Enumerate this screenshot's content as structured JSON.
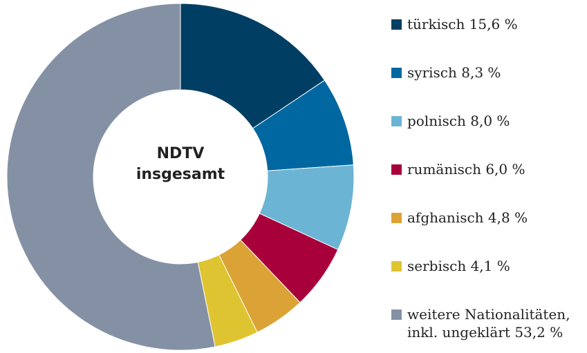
{
  "chart_data": {
    "type": "pie",
    "center_label": "NDTV insgesamt",
    "categories": [
      "türkisch",
      "syrisch",
      "polnisch",
      "rumänisch",
      "afghanisch",
      "serbisch",
      "weitere Nationalitäten, inkl. ungeklärt"
    ],
    "values": [
      15.6,
      8.3,
      8.0,
      6.0,
      4.8,
      4.1,
      53.2
    ],
    "value_labels": [
      "15,6 %",
      "8,3 %",
      "8,0 %",
      "6,0 %",
      "4,8 %",
      "4,1 %",
      "53,2 %"
    ],
    "colors": [
      "#003f63",
      "#0067a0",
      "#6cb4d4",
      "#a8003a",
      "#dba335",
      "#dfc432",
      "#8491a5"
    ],
    "legend": "right"
  }
}
